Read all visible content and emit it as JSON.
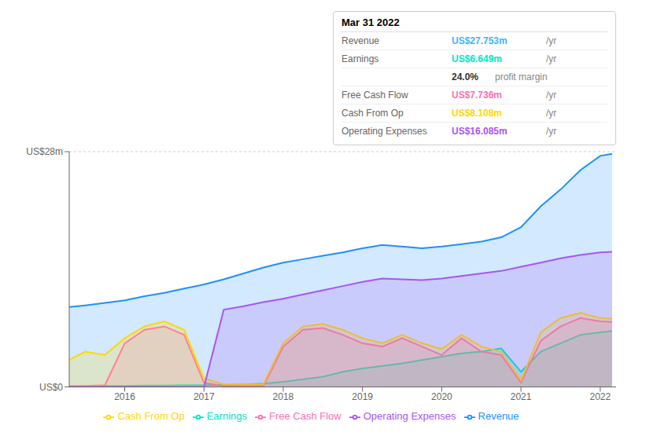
{
  "chart_data": {
    "type": "area",
    "x": [
      2015.3,
      2015.5,
      2015.75,
      2016.0,
      2016.25,
      2016.5,
      2016.75,
      2017.0,
      2017.25,
      2017.5,
      2017.75,
      2018.0,
      2018.25,
      2018.5,
      2018.75,
      2019.0,
      2019.25,
      2019.5,
      2019.75,
      2020.0,
      2020.25,
      2020.5,
      2020.75,
      2021.0,
      2021.25,
      2021.5,
      2021.75,
      2022.0,
      2022.15
    ],
    "xlim": [
      2015.3,
      2022.2
    ],
    "xticks": [
      2016,
      2017,
      2018,
      2019,
      2020,
      2021,
      2022
    ],
    "ylim": [
      0,
      28
    ],
    "yticks": [
      {
        "value": 0,
        "label": "US$0"
      },
      {
        "value": 28,
        "label": "US$28m"
      }
    ],
    "grid": true,
    "legend": "bottom",
    "series": [
      {
        "name": "Revenue",
        "color": "#1e90ff",
        "values": [
          9.5,
          9.7,
          10.0,
          10.3,
          10.8,
          11.2,
          11.7,
          12.2,
          12.8,
          13.5,
          14.2,
          14.8,
          15.2,
          15.6,
          16.0,
          16.5,
          16.9,
          16.7,
          16.5,
          16.7,
          17.0,
          17.3,
          17.8,
          19.0,
          21.5,
          23.5,
          25.8,
          27.5,
          27.753
        ]
      },
      {
        "name": "Earnings",
        "color": "#00e5c8",
        "values": [
          0.05,
          0.05,
          0.1,
          0.1,
          0.15,
          0.15,
          0.2,
          0.2,
          0.25,
          0.3,
          0.4,
          0.6,
          0.9,
          1.2,
          1.8,
          2.2,
          2.5,
          2.8,
          3.2,
          3.6,
          4.0,
          4.2,
          4.6,
          1.8,
          4.2,
          5.2,
          6.2,
          6.5,
          6.649
        ]
      },
      {
        "name": "Free Cash Flow",
        "color": "#ff6eb4",
        "values": [
          0.1,
          0.1,
          0.2,
          5.2,
          6.8,
          7.2,
          6.2,
          0.5,
          0.1,
          0.1,
          0.1,
          4.8,
          6.8,
          7.0,
          6.2,
          5.2,
          4.8,
          5.8,
          4.8,
          3.8,
          5.8,
          4.2,
          3.8,
          0.5,
          5.5,
          7.2,
          8.2,
          7.8,
          7.736
        ]
      },
      {
        "name": "Cash From Op",
        "color": "#ffd700",
        "values": [
          3.2,
          4.2,
          3.8,
          5.8,
          7.2,
          7.8,
          6.8,
          1.0,
          0.3,
          0.3,
          0.3,
          5.2,
          7.2,
          7.5,
          6.8,
          5.8,
          5.2,
          6.2,
          5.2,
          4.5,
          6.2,
          4.8,
          4.2,
          0.8,
          6.5,
          8.2,
          8.8,
          8.2,
          8.108
        ]
      },
      {
        "name": "Operating Expenses",
        "color": "#a855f7",
        "values": [
          0,
          0,
          0,
          0,
          0,
          0,
          0,
          0,
          9.2,
          9.6,
          10.1,
          10.5,
          11.0,
          11.5,
          12.0,
          12.5,
          12.9,
          12.8,
          12.7,
          12.9,
          13.2,
          13.5,
          13.8,
          14.3,
          14.8,
          15.3,
          15.7,
          16.0,
          16.085
        ]
      }
    ],
    "annotations": [
      {
        "title": "Mar 31 2022",
        "rows": [
          {
            "label": "Revenue",
            "value": "US$27.753m",
            "unit": "/yr",
            "color": "#38b6ff"
          },
          {
            "label": "Earnings",
            "value": "US$6.649m",
            "unit": "/yr",
            "color": "#00e5c8"
          },
          {
            "value": "24.0%",
            "unit": "profit margin"
          },
          {
            "label": "Free Cash Flow",
            "value": "US$7.736m",
            "unit": "/yr",
            "color": "#ff6eb4"
          },
          {
            "label": "Cash From Op",
            "value": "US$8.108m",
            "unit": "/yr",
            "color": "#ffd700"
          },
          {
            "label": "Operating Expenses",
            "value": "US$16.085m",
            "unit": "/yr",
            "color": "#a855f7"
          }
        ]
      }
    ]
  }
}
